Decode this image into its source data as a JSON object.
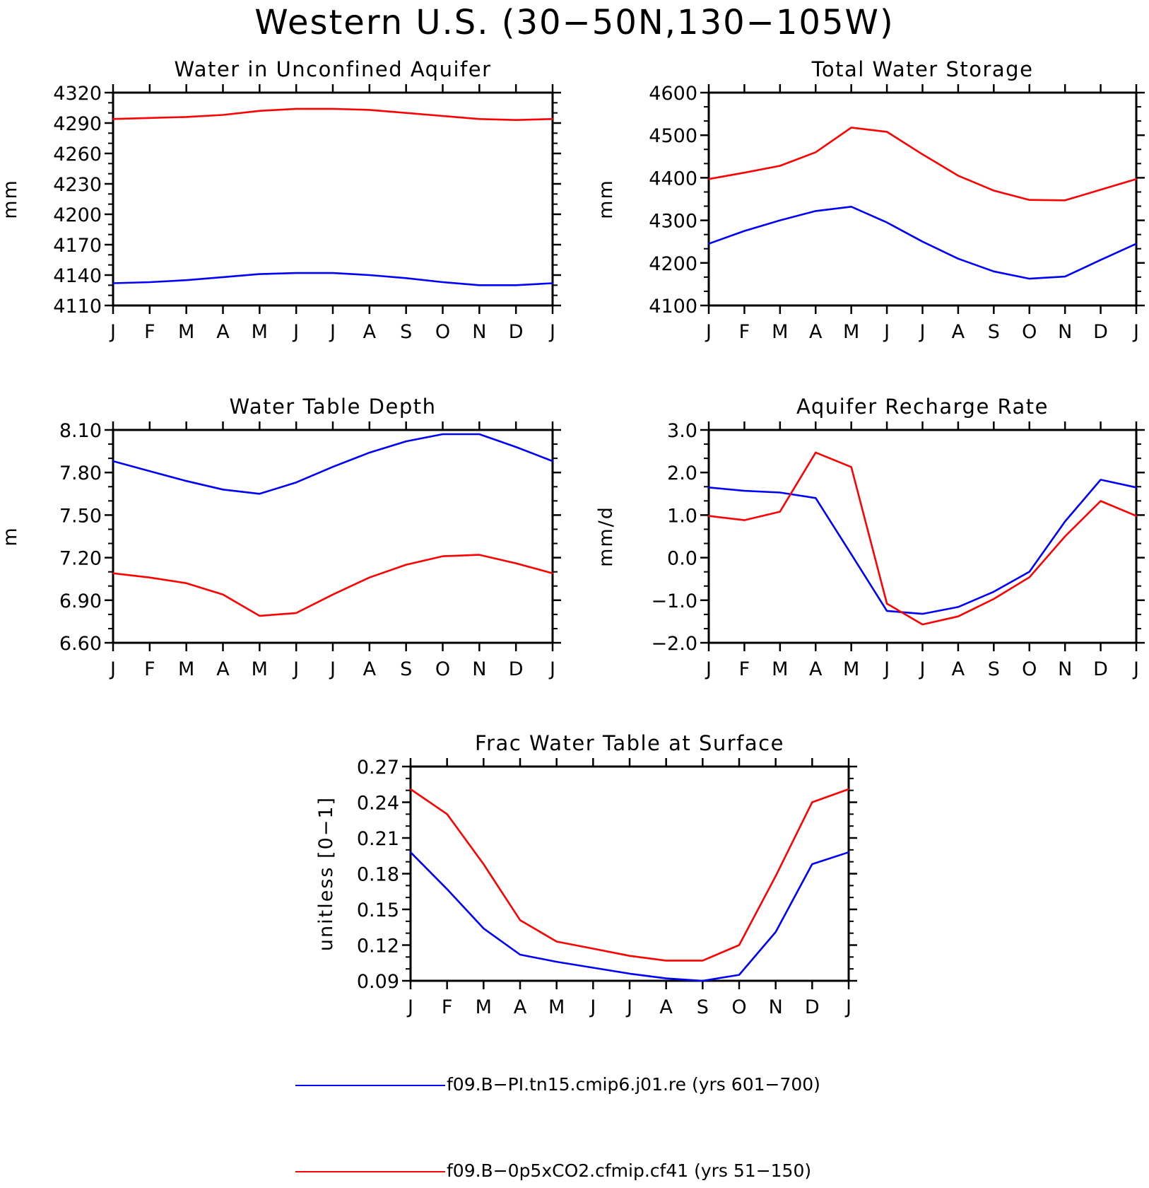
{
  "figure": {
    "title": "Western U.S. (30−50N,130−105W)"
  },
  "colors": {
    "series_1": "#0000ff",
    "series_2": "#ff0000",
    "axes": "#000000"
  },
  "legend": [
    {
      "label": "f09.B−PI.tn15.cmip6.j01.re (yrs 601−700)",
      "color": "#0000ff"
    },
    {
      "label": "f09.B−0p5xCO2.cfmip.cf41 (yrs 51−150)",
      "color": "#ff0000"
    }
  ],
  "chart_data": [
    {
      "type": "line",
      "title": "Water in Unconfined Aquifer",
      "xlabel": "",
      "ylabel": "mm",
      "categories": [
        "J",
        "F",
        "M",
        "A",
        "M",
        "J",
        "J",
        "A",
        "S",
        "O",
        "N",
        "D",
        "J"
      ],
      "ylim": [
        4110,
        4320
      ],
      "yticks": [
        "4320",
        "4290",
        "4260",
        "4230",
        "4200",
        "4170",
        "4140",
        "4110"
      ],
      "grid": false,
      "series": [
        {
          "color": "#0000ff",
          "values": [
            4132,
            4133,
            4135,
            4138,
            4141,
            4142,
            4142,
            4140,
            4137,
            4133,
            4130,
            4130,
            4132
          ]
        },
        {
          "color": "#ff0000",
          "values": [
            4294,
            4295,
            4296,
            4298,
            4302,
            4304,
            4304,
            4303,
            4300,
            4297,
            4294,
            4293,
            4294
          ]
        }
      ]
    },
    {
      "type": "line",
      "title": "Total Water Storage",
      "xlabel": "",
      "ylabel": "mm",
      "categories": [
        "J",
        "F",
        "M",
        "A",
        "M",
        "J",
        "J",
        "A",
        "S",
        "O",
        "N",
        "D",
        "J"
      ],
      "ylim": [
        4100,
        4600
      ],
      "yticks": [
        "4600",
        "4500",
        "4400",
        "4300",
        "4200",
        "4100"
      ],
      "grid": false,
      "series": [
        {
          "color": "#0000ff",
          "values": [
            4245,
            4275,
            4300,
            4322,
            4332,
            4295,
            4250,
            4210,
            4180,
            4163,
            4168,
            4207,
            4245
          ]
        },
        {
          "color": "#ff0000",
          "values": [
            4397,
            4412,
            4428,
            4460,
            4518,
            4508,
            4455,
            4405,
            4370,
            4348,
            4347,
            4372,
            4397
          ]
        }
      ]
    },
    {
      "type": "line",
      "title": "Water Table Depth",
      "xlabel": "",
      "ylabel": "m",
      "categories": [
        "J",
        "F",
        "M",
        "A",
        "M",
        "J",
        "J",
        "A",
        "S",
        "O",
        "N",
        "D",
        "J"
      ],
      "ylim": [
        6.6,
        8.1
      ],
      "yticks": [
        "8.10",
        "7.80",
        "7.50",
        "7.20",
        "6.90",
        "6.60"
      ],
      "grid": false,
      "series": [
        {
          "color": "#0000ff",
          "values": [
            7.88,
            7.81,
            7.74,
            7.68,
            7.65,
            7.73,
            7.84,
            7.94,
            8.02,
            8.07,
            8.07,
            7.98,
            7.88
          ]
        },
        {
          "color": "#ff0000",
          "values": [
            7.09,
            7.06,
            7.02,
            6.94,
            6.79,
            6.81,
            6.94,
            7.06,
            7.15,
            7.21,
            7.22,
            7.16,
            7.09
          ]
        }
      ]
    },
    {
      "type": "line",
      "title": "Aquifer Recharge Rate",
      "xlabel": "",
      "ylabel": "mm/d",
      "categories": [
        "J",
        "F",
        "M",
        "A",
        "M",
        "J",
        "J",
        "A",
        "S",
        "O",
        "N",
        "D",
        "J"
      ],
      "ylim": [
        -2.0,
        3.0
      ],
      "yticks": [
        "3.0",
        "2.0",
        "1.0",
        "0.0",
        "−1.0",
        "−2.0"
      ],
      "grid": false,
      "series": [
        {
          "color": "#0000ff",
          "values": [
            1.65,
            1.57,
            1.53,
            1.4,
            0.08,
            -1.25,
            -1.32,
            -1.16,
            -0.8,
            -0.33,
            0.85,
            1.83,
            1.65
          ]
        },
        {
          "color": "#ff0000",
          "values": [
            0.98,
            0.88,
            1.08,
            2.47,
            2.13,
            -1.08,
            -1.57,
            -1.38,
            -0.97,
            -0.46,
            0.5,
            1.33,
            0.98
          ]
        }
      ]
    },
    {
      "type": "line",
      "title": "Frac Water Table at Surface",
      "xlabel": "",
      "ylabel": "unitless [0−1]",
      "categories": [
        "J",
        "F",
        "M",
        "A",
        "M",
        "J",
        "J",
        "A",
        "S",
        "O",
        "N",
        "D",
        "J"
      ],
      "ylim": [
        0.09,
        0.27
      ],
      "yticks": [
        "0.27",
        "0.24",
        "0.21",
        "0.18",
        "0.15",
        "0.12",
        "0.09"
      ],
      "grid": false,
      "series": [
        {
          "color": "#0000ff",
          "values": [
            0.198,
            0.167,
            0.134,
            0.112,
            0.106,
            0.101,
            0.096,
            0.092,
            0.09,
            0.095,
            0.131,
            0.188,
            0.198
          ]
        },
        {
          "color": "#ff0000",
          "values": [
            0.251,
            0.23,
            0.188,
            0.141,
            0.123,
            0.117,
            0.111,
            0.107,
            0.107,
            0.12,
            0.178,
            0.24,
            0.251
          ]
        }
      ]
    }
  ]
}
